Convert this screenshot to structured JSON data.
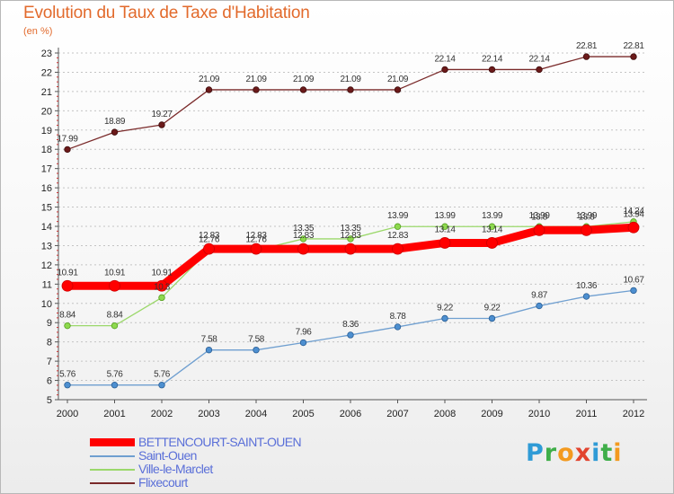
{
  "header": {
    "title": "Evolution du Taux de Taxe d'Habitation",
    "unit": "(en %)"
  },
  "brand": {
    "letters": [
      {
        "ch": "P",
        "color": "#2f9bd6"
      },
      {
        "ch": "r",
        "color": "#3fae49"
      },
      {
        "ch": "o",
        "color": "#f39a1f"
      },
      {
        "ch": "x",
        "color": "#e2442f"
      },
      {
        "ch": "i",
        "color": "#2f9bd6"
      },
      {
        "ch": "t",
        "color": "#3fae49"
      },
      {
        "ch": "i",
        "color": "#f39a1f"
      }
    ]
  },
  "chart_data": {
    "type": "line",
    "title": "Evolution du Taux de Taxe d'Habitation",
    "ylabel": "(en %)",
    "xlabel": "",
    "x": [
      "2000",
      "2001",
      "2002",
      "2003",
      "2004",
      "2005",
      "2006",
      "2007",
      "2008",
      "2009",
      "2010",
      "2011",
      "2012"
    ],
    "ylim": [
      5,
      23
    ],
    "yticks": [
      5,
      6,
      7,
      8,
      9,
      10,
      11,
      12,
      13,
      14,
      15,
      16,
      17,
      18,
      19,
      20,
      21,
      22,
      23
    ],
    "grid": "horizontal-dashed",
    "legend_position": "bottom-left",
    "series": [
      {
        "name": "BETTENCOURT-SAINT-OUEN",
        "color": "#ff0000",
        "values": [
          10.91,
          10.91,
          10.91,
          12.83,
          12.83,
          12.83,
          12.83,
          12.83,
          13.14,
          13.14,
          13.8,
          13.8,
          13.94
        ],
        "labels": [
          "10.91",
          "10.91",
          "10.91",
          "12.83",
          "12.83",
          "12.83",
          "12.83",
          "12.83",
          "13.14",
          "13.14",
          "13.8",
          "13.8",
          "13.94"
        ],
        "label_pos": "above"
      },
      {
        "name": "Saint-Ouen",
        "color": "#6f9fd0",
        "values": [
          5.76,
          5.76,
          5.76,
          7.58,
          7.58,
          7.96,
          8.36,
          8.78,
          9.22,
          9.22,
          9.87,
          10.36,
          10.67
        ],
        "labels": [
          "5.76",
          "5.76",
          "5.76",
          "7.58",
          "7.58",
          "7.96",
          "8.36",
          "8.78",
          "9.22",
          "9.22",
          "9.87",
          "10.36",
          "10.67"
        ],
        "label_pos": "above"
      },
      {
        "name": "Ville-le-Marclet",
        "color": "#9bd86a",
        "values": [
          8.84,
          8.84,
          10.3,
          12.76,
          12.76,
          13.35,
          13.35,
          13.99,
          13.99,
          13.99,
          13.99,
          13.99,
          14.24
        ],
        "labels": [
          "8.84",
          "8.84",
          "10.3",
          "12.76",
          "12.76",
          "13.35",
          "13.35",
          "13.99",
          "13.99",
          "13.99",
          "13.99",
          "13.99",
          "14.24"
        ],
        "label_pos": "above"
      },
      {
        "name": "Flixecourt",
        "color": "#7a2a2a",
        "values": [
          17.99,
          18.89,
          19.27,
          21.09,
          21.09,
          21.09,
          21.09,
          21.09,
          22.14,
          22.14,
          22.14,
          22.81,
          22.81
        ],
        "labels": [
          "17.99",
          "18.89",
          "19.27",
          "21.09",
          "21.09",
          "21.09",
          "21.09",
          "21.09",
          "22.14",
          "22.14",
          "22.14",
          "22.81",
          "22.81"
        ],
        "label_pos": "above"
      }
    ]
  }
}
